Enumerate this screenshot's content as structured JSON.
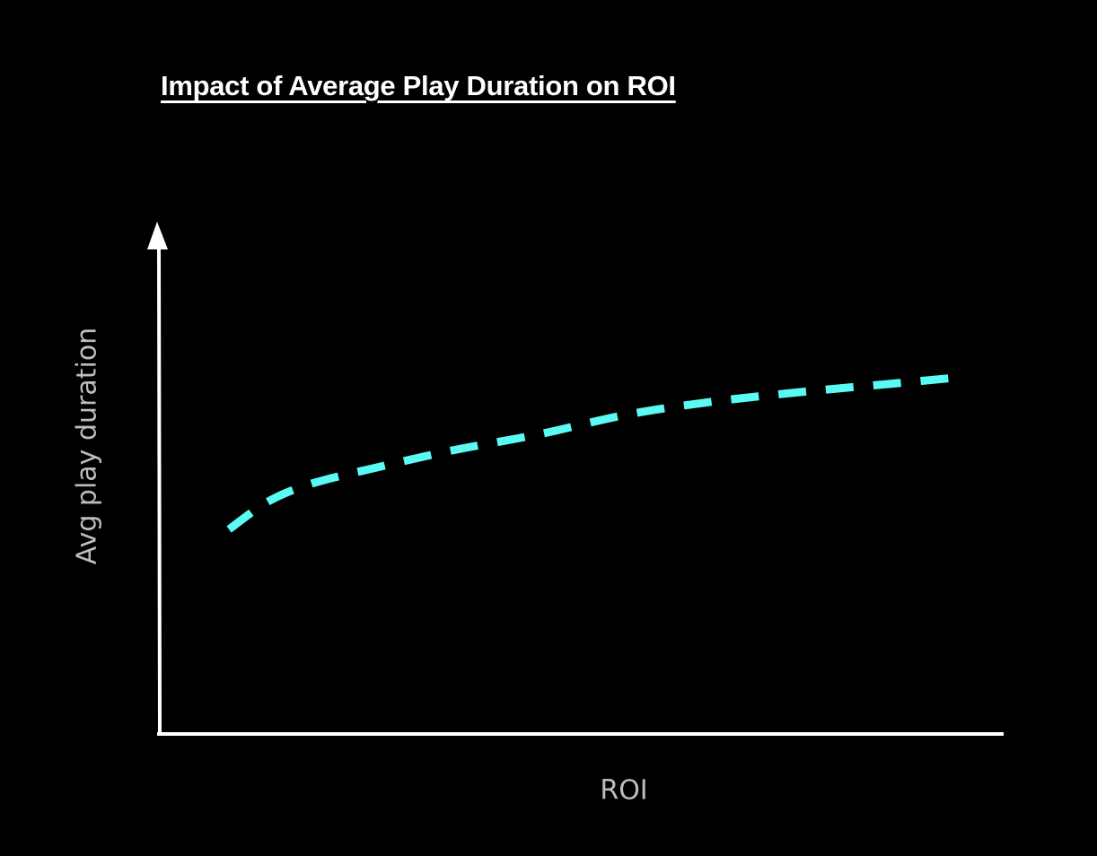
{
  "chart": {
    "title": "Impact of Average Play Duration on ROI",
    "xlabel": "ROI",
    "ylabel": "Avg play duration",
    "colors": {
      "background": "#000000",
      "axes": "#ffffff",
      "line": "#5cfaf4",
      "labels": "#bdbdbd",
      "title": "#ffffff"
    }
  },
  "chart_data": {
    "type": "line",
    "title": "Impact of Average Play Duration on ROI",
    "xlabel": "ROI",
    "ylabel": "Avg play duration",
    "x_ticks": [],
    "y_ticks": [],
    "grid": false,
    "legend": null,
    "axis_ranges_note": "No numeric ticks shown; values are normalized 0-100 estimates read from pixel position",
    "xlim": [
      0,
      100
    ],
    "ylim": [
      0,
      100
    ],
    "series": [
      {
        "name": "Avg play duration vs ROI",
        "style": "dashed",
        "color": "#5cfaf4",
        "x": [
          8.3,
          13.1,
          18.4,
          25.8,
          34.3,
          45.0,
          55.6,
          66.2,
          76.9,
          87.5,
          93.9
        ],
        "y": [
          40.0,
          45.6,
          49.1,
          52.1,
          55.3,
          58.6,
          62.5,
          65.1,
          67.0,
          68.6,
          69.6
        ]
      }
    ]
  }
}
